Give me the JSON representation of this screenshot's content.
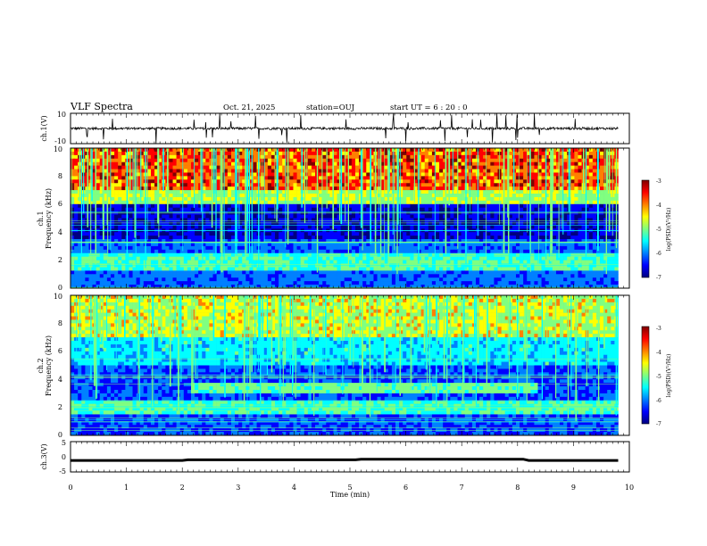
{
  "header": {
    "title": "VLF Spectra",
    "date": "Oct. 21, 2025",
    "station": "station=OUJ",
    "start_ut": "start  UT =  6 : 20 : 0"
  },
  "colors": {
    "spectrogram_scale": [
      "#00007f",
      "#0000ff",
      "#0080ff",
      "#00ffff",
      "#80ff80",
      "#ffff00",
      "#ff8000",
      "#ff0000",
      "#7f0000"
    ],
    "trace": "#000000",
    "frame": "#000000"
  },
  "chart_data": [
    {
      "type": "line",
      "panel": "waveform-ch1",
      "ylabel": "ch.1(V)",
      "ylim": [
        -10,
        10
      ],
      "y_ticks": [
        "10",
        "-10"
      ],
      "x": [
        0,
        1,
        2,
        3,
        4,
        5,
        6,
        7,
        8,
        9,
        9.8
      ],
      "y": [
        0,
        0,
        0,
        0,
        0,
        0,
        0,
        0,
        0,
        0,
        0
      ],
      "note_series": "broadband noise around 0 V with impulsive spikes (sferics)"
    },
    {
      "type": "heatmap",
      "panel": "spectrogram-ch1",
      "ylabel": "ch.1\nFrequency (kHz)",
      "ylim": [
        0,
        10
      ],
      "y_ticks": [
        "0",
        "2",
        "4",
        "6",
        "8",
        "10"
      ],
      "colorbar": {
        "label": "log(PSD)(V²/Hz)",
        "range": [
          -7,
          -3
        ],
        "ticks": [
          "-3",
          "-4",
          "-5",
          "-6",
          "-7"
        ]
      },
      "xlim": [
        0,
        9.8
      ]
    },
    {
      "type": "heatmap",
      "panel": "spectrogram-ch2",
      "ylabel": "ch.2\nFrequency (kHz)",
      "ylim": [
        0,
        10
      ],
      "y_ticks": [
        "0",
        "2",
        "4",
        "6",
        "8",
        "10"
      ],
      "colorbar": {
        "label": "log(PSD)(V²/Hz)",
        "range": [
          -7,
          -3
        ],
        "ticks": [
          "-3",
          "-4",
          "-5",
          "-6",
          "-7"
        ]
      },
      "xlim": [
        0,
        9.8
      ]
    },
    {
      "type": "line",
      "panel": "waveform-ch3",
      "ylabel": "ch.3(V)",
      "ylim": [
        -5,
        5
      ],
      "y_ticks": [
        "5",
        "0",
        "-5"
      ],
      "x": [
        0,
        2.0,
        2.1,
        5.1,
        5.2,
        8.1,
        8.2,
        9.8
      ],
      "y": [
        -1.2,
        -1.2,
        -1.0,
        -1.0,
        -0.8,
        -0.8,
        -1.2,
        -1.2
      ]
    }
  ],
  "x_axis": {
    "label": "Time (min)",
    "ticks": [
      "0",
      "1",
      "2",
      "3",
      "4",
      "5",
      "6",
      "7",
      "8",
      "9",
      "10"
    ],
    "xlim": [
      0,
      10
    ]
  }
}
